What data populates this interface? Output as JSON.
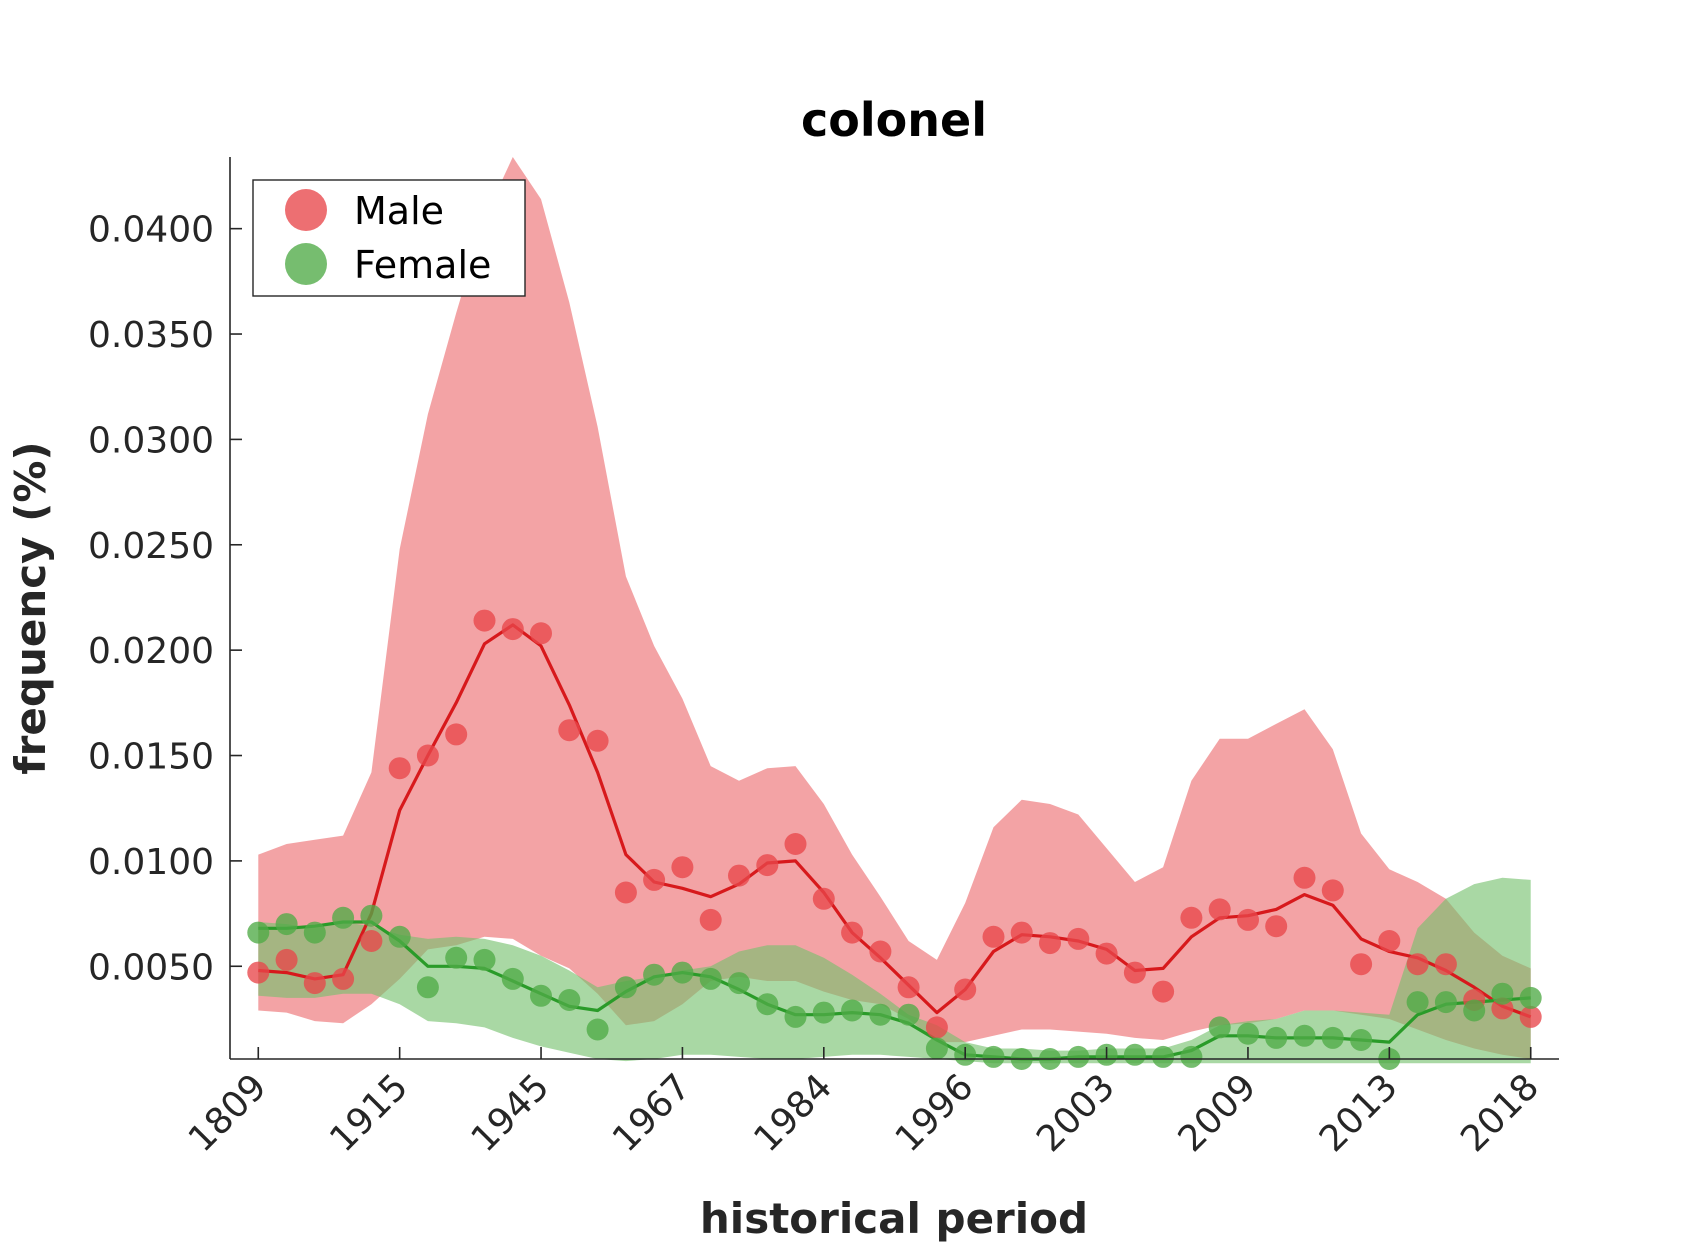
{
  "chart_data": {
    "type": "line",
    "title": "colonel",
    "xlabel": "historical period",
    "ylabel": "frequency (%)",
    "x_tick_labels": [
      "1809",
      "1915",
      "1945",
      "1967",
      "1984",
      "1996",
      "2003",
      "2009",
      "2013",
      "2018"
    ],
    "x_tick_index": [
      0,
      5,
      10,
      15,
      20,
      25,
      30,
      35,
      40,
      45
    ],
    "y_ticks": [
      0.005,
      0.01,
      0.015,
      0.02,
      0.025,
      0.03,
      0.035,
      0.04
    ],
    "y_tick_labels": [
      "0.0050",
      "0.0100",
      "0.0150",
      "0.0200",
      "0.0250",
      "0.0300",
      "0.0350",
      "0.0400"
    ],
    "ylim": [
      0.0006,
      0.0434
    ],
    "xlim_index": [
      -1,
      46
    ],
    "legend": {
      "position": "top-left",
      "entries": [
        "Male",
        "Female"
      ]
    },
    "grid": false,
    "series": [
      {
        "name": "Male",
        "color": "#e41a1c",
        "points": [
          0.0047,
          0.0053,
          0.0042,
          0.0044,
          0.0062,
          0.0144,
          0.015,
          0.016,
          0.0214,
          0.021,
          0.0208,
          0.0162,
          0.0157,
          0.0085,
          0.0091,
          0.0097,
          0.0072,
          0.0093,
          0.0098,
          0.0108,
          0.0082,
          0.0066,
          0.0057,
          0.004,
          0.0021,
          0.0039,
          0.0064,
          0.0066,
          0.0061,
          0.0063,
          0.0056,
          0.0047,
          0.0038,
          0.0073,
          0.0077,
          0.0072,
          0.0069,
          0.0092,
          0.0086,
          0.0051,
          0.0062,
          0.0051,
          0.0051,
          0.0034,
          0.003,
          0.0026
        ],
        "trend": [
          0.0048,
          0.0047,
          0.0044,
          0.0046,
          0.0075,
          0.0124,
          0.015,
          0.0175,
          0.0203,
          0.0212,
          0.0202,
          0.0174,
          0.0142,
          0.0103,
          0.009,
          0.0087,
          0.0083,
          0.0089,
          0.0099,
          0.01,
          0.0085,
          0.0066,
          0.0054,
          0.0041,
          0.0028,
          0.0039,
          0.0057,
          0.0065,
          0.0064,
          0.0062,
          0.0058,
          0.0048,
          0.0049,
          0.0064,
          0.0073,
          0.0074,
          0.0077,
          0.0084,
          0.0079,
          0.0063,
          0.0057,
          0.0054,
          0.0048,
          0.004,
          0.0031,
          0.0026
        ],
        "band_upper": [
          0.0103,
          0.0108,
          0.011,
          0.0112,
          0.0142,
          0.0248,
          0.0312,
          0.036,
          0.0405,
          0.0434,
          0.0414,
          0.0365,
          0.0306,
          0.0235,
          0.0202,
          0.0177,
          0.0145,
          0.0138,
          0.0144,
          0.0145,
          0.0127,
          0.0103,
          0.0083,
          0.0062,
          0.0053,
          0.008,
          0.0116,
          0.0129,
          0.0127,
          0.0122,
          0.0106,
          0.009,
          0.0097,
          0.0138,
          0.0158,
          0.0158,
          0.0165,
          0.0172,
          0.0153,
          0.0113,
          0.0096,
          0.009,
          0.0082,
          0.0066,
          0.0055,
          0.0049
        ],
        "band_lower": [
          0.0029,
          0.0028,
          0.0024,
          0.0023,
          0.0032,
          0.0044,
          0.0058,
          0.006,
          0.0064,
          0.0063,
          0.0055,
          0.0049,
          0.0037,
          0.0022,
          0.0024,
          0.0032,
          0.0043,
          0.0045,
          0.0043,
          0.0043,
          0.0038,
          0.0034,
          0.0032,
          0.0025,
          0.0014,
          0.0014,
          0.0017,
          0.002,
          0.002,
          0.0019,
          0.0018,
          0.0016,
          0.0015,
          0.0019,
          0.0022,
          0.0023,
          0.0025,
          0.0029,
          0.0029,
          0.0027,
          0.0025,
          0.002,
          0.0015,
          0.0011,
          0.0008,
          0.0006
        ]
      },
      {
        "name": "Female",
        "color": "#33a02c",
        "points": [
          0.0066,
          0.007,
          0.0066,
          0.0073,
          0.0074,
          0.0064,
          0.004,
          0.0054,
          0.0053,
          0.0044,
          0.0036,
          0.0034,
          0.002,
          0.004,
          0.0046,
          0.0047,
          0.0044,
          0.0042,
          0.0032,
          0.0026,
          0.0028,
          0.0029,
          0.0027,
          0.0027,
          0.0011,
          0.0008,
          0.0007,
          0.0006,
          0.0006,
          0.0007,
          0.0008,
          0.0008,
          0.0007,
          0.0007,
          0.0021,
          0.0018,
          0.0016,
          0.0017,
          0.0016,
          0.0015,
          0.0006,
          0.0033,
          0.0033,
          0.0029,
          0.0037,
          0.0035
        ],
        "trend": [
          0.0068,
          0.0068,
          0.0069,
          0.0071,
          0.0071,
          0.0062,
          0.005,
          0.005,
          0.0049,
          0.0043,
          0.0037,
          0.0031,
          0.0029,
          0.0038,
          0.0045,
          0.0047,
          0.0045,
          0.0039,
          0.0032,
          0.0027,
          0.0027,
          0.0028,
          0.0027,
          0.0023,
          0.0015,
          0.0008,
          0.0007,
          0.0006,
          0.0006,
          0.0007,
          0.0007,
          0.0007,
          0.0007,
          0.001,
          0.0017,
          0.0017,
          0.0016,
          0.0016,
          0.0016,
          0.0015,
          0.0014,
          0.0027,
          0.0032,
          0.0033,
          0.0034,
          0.0035
        ],
        "band_upper": [
          0.0071,
          0.007,
          0.0068,
          0.0071,
          0.0069,
          0.0065,
          0.0063,
          0.0064,
          0.0063,
          0.006,
          0.0055,
          0.0048,
          0.004,
          0.0043,
          0.0045,
          0.0048,
          0.005,
          0.0057,
          0.006,
          0.006,
          0.0054,
          0.0046,
          0.0037,
          0.0027,
          0.0022,
          0.0014,
          0.0011,
          0.0011,
          0.001,
          0.001,
          0.0011,
          0.0011,
          0.0011,
          0.0015,
          0.0022,
          0.0024,
          0.0025,
          0.0029,
          0.0029,
          0.0028,
          0.0027,
          0.0068,
          0.0082,
          0.0089,
          0.0092,
          0.0091
        ],
        "band_lower": [
          0.0036,
          0.0035,
          0.0035,
          0.0037,
          0.0037,
          0.0032,
          0.0024,
          0.0023,
          0.0021,
          0.0016,
          0.0012,
          0.0009,
          0.0006,
          0.0005,
          0.0006,
          0.0008,
          0.0008,
          0.0007,
          0.0006,
          0.0006,
          0.0007,
          0.0008,
          0.0008,
          0.0007,
          0.0006,
          0.0005,
          0.0004,
          0.0004,
          0.0004,
          0.0004,
          0.0004,
          0.0004,
          0.0004,
          0.0004,
          0.0004,
          0.0004,
          0.0004,
          0.0004,
          0.0004,
          0.0004,
          0.0004,
          0.0004,
          0.0004,
          0.0004,
          0.0004,
          0.0004
        ]
      }
    ]
  }
}
